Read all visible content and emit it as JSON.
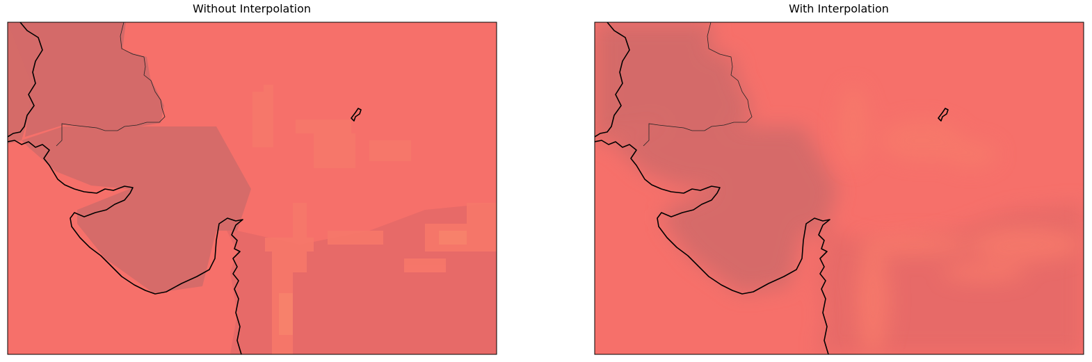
{
  "panels": [
    {
      "title": "Without Interpolation"
    },
    {
      "title": "With Interpolation"
    }
  ]
}
